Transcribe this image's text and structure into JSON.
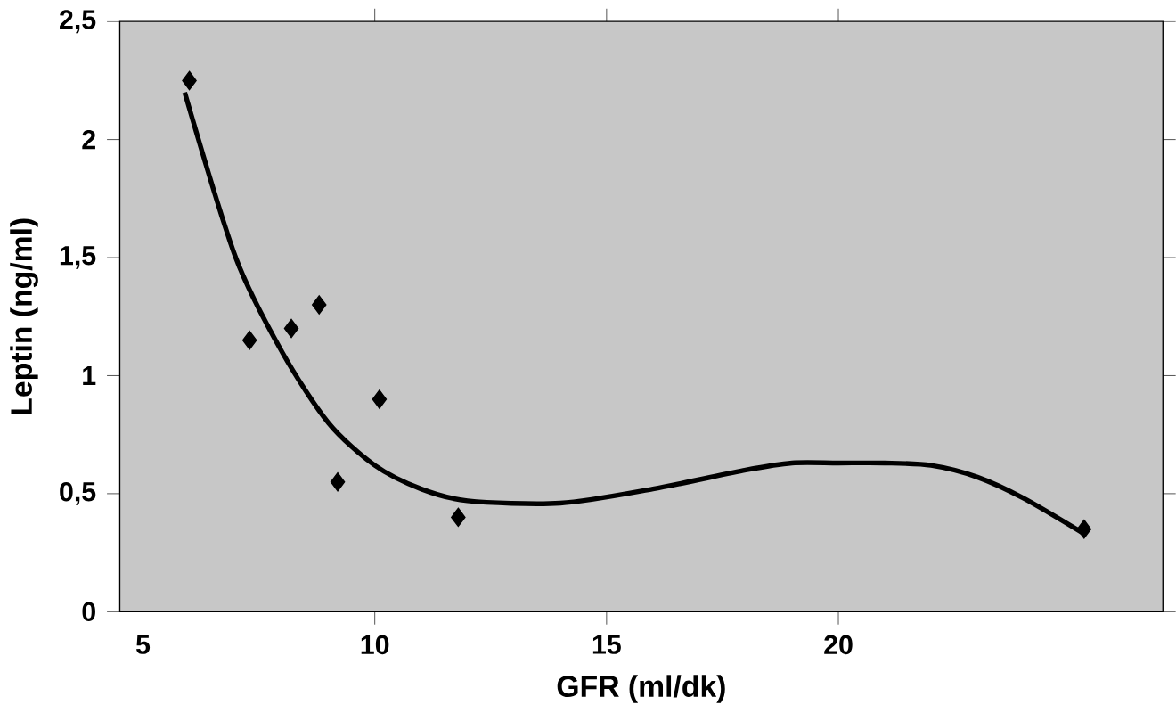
{
  "chart_data": {
    "type": "scatter",
    "xlabel": "GFR (ml/dk)",
    "ylabel": "Leptin (ng/ml)",
    "xlim": [
      4.5,
      27
    ],
    "xticks": [
      5,
      10,
      15,
      20
    ],
    "ylim": [
      0,
      2.5
    ],
    "yticks": [
      {
        "value": 0,
        "label": "0"
      },
      {
        "value": 0.5,
        "label": "0,5"
      },
      {
        "value": 1,
        "label": "1"
      },
      {
        "value": 1.5,
        "label": "1,5"
      },
      {
        "value": 2,
        "label": "2"
      },
      {
        "value": 2.5,
        "label": "2,5"
      }
    ],
    "marker": "diamond",
    "grid": false,
    "series": [
      {
        "color": "#000000",
        "x": [
          6.0,
          7.3,
          8.2,
          8.8,
          9.2,
          10.1,
          11.8,
          25.3
        ],
        "values": [
          2.25,
          1.15,
          1.2,
          1.3,
          0.55,
          0.9,
          0.4,
          0.35
        ]
      },
      {
        "type": "line",
        "marker": "none",
        "color": "#000000",
        "x": [
          5.9,
          7,
          8,
          9,
          10,
          11,
          12,
          14,
          16,
          18,
          19,
          20,
          21,
          22,
          23,
          24,
          25.3
        ],
        "values": [
          2.2,
          1.5,
          1.1,
          0.8,
          0.62,
          0.52,
          0.47,
          0.46,
          0.52,
          0.6,
          0.63,
          0.63,
          0.63,
          0.62,
          0.57,
          0.48,
          0.33
        ]
      }
    ]
  }
}
